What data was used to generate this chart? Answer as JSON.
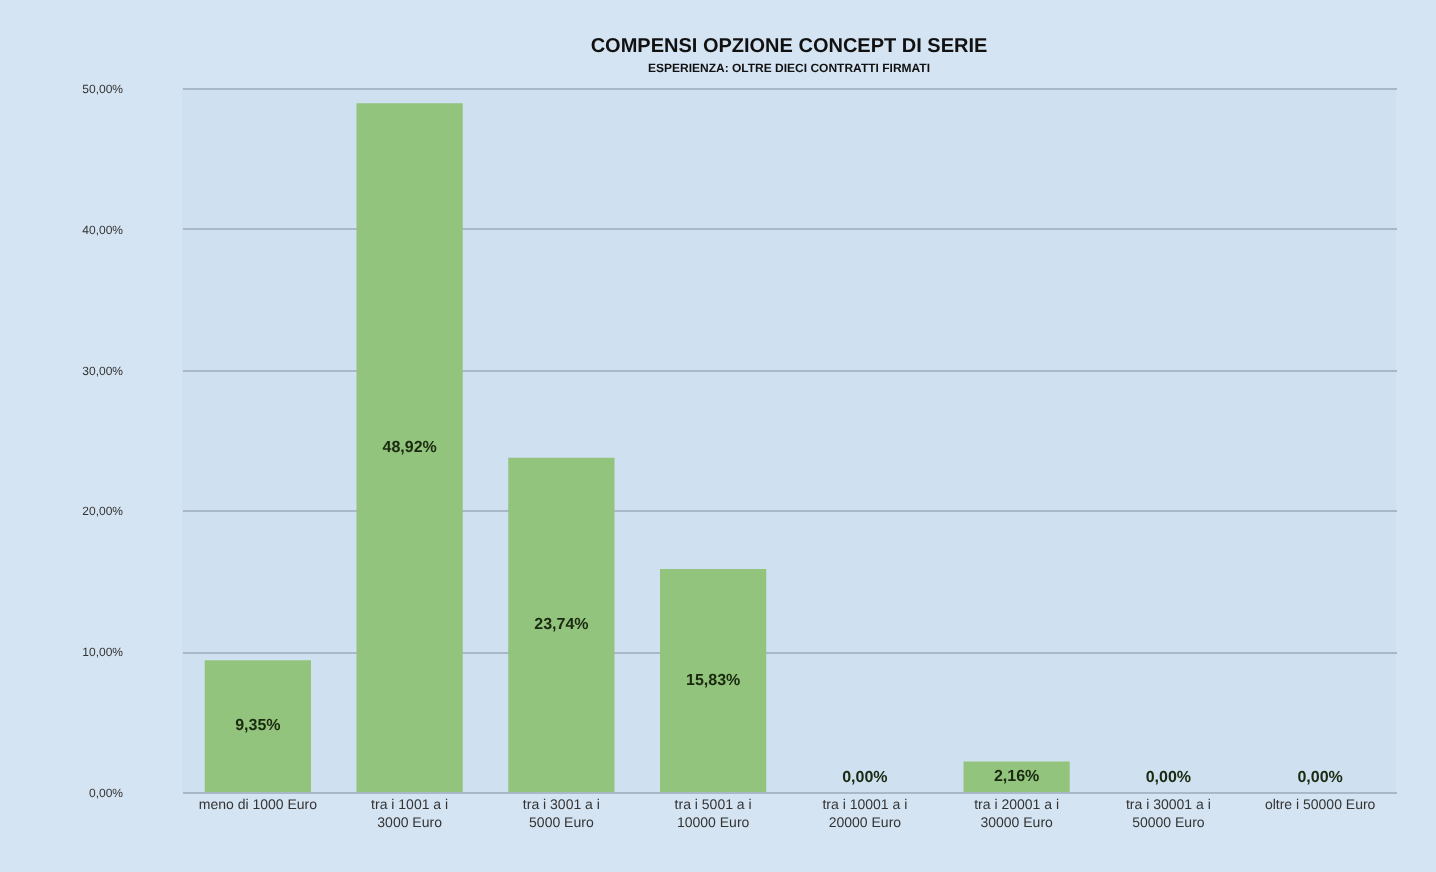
{
  "chart_data": {
    "type": "bar",
    "title": "COMPENSI OPZIONE CONCEPT DI SERIE",
    "subtitle": "ESPERIENZA: OLTRE DIECI CONTRATTI FIRMATI",
    "categories": [
      "meno di 1000 Euro",
      "tra i 1001 a i 3000 Euro",
      "tra i 3001 a i 5000 Euro",
      "tra i 5001 a i 10000 Euro",
      "tra i 10001 a i 20000 Euro",
      "tra i 20001 a i 30000 Euro",
      "tra i 30001 a i 50000 Euro",
      "oltre i 50000 Euro"
    ],
    "values": [
      9.35,
      48.92,
      23.74,
      15.83,
      0,
      2.16,
      0,
      0
    ],
    "value_labels": [
      "9,35%",
      "48,92%",
      "23,74%",
      "15,83%",
      "0,00%",
      "2,16%",
      "0,00%",
      "0,00%"
    ],
    "color": "#93c47d",
    "ylim": [
      0,
      50
    ],
    "yticks": [
      {
        "value": 0,
        "label": "0,00%"
      },
      {
        "value": 10,
        "label": "10,00%"
      },
      {
        "value": 20,
        "label": "20,00%"
      },
      {
        "value": 30,
        "label": "30,00%"
      },
      {
        "value": 40,
        "label": "40,00%"
      },
      {
        "value": 50,
        "label": "50,00%"
      }
    ],
    "grid": "y"
  }
}
